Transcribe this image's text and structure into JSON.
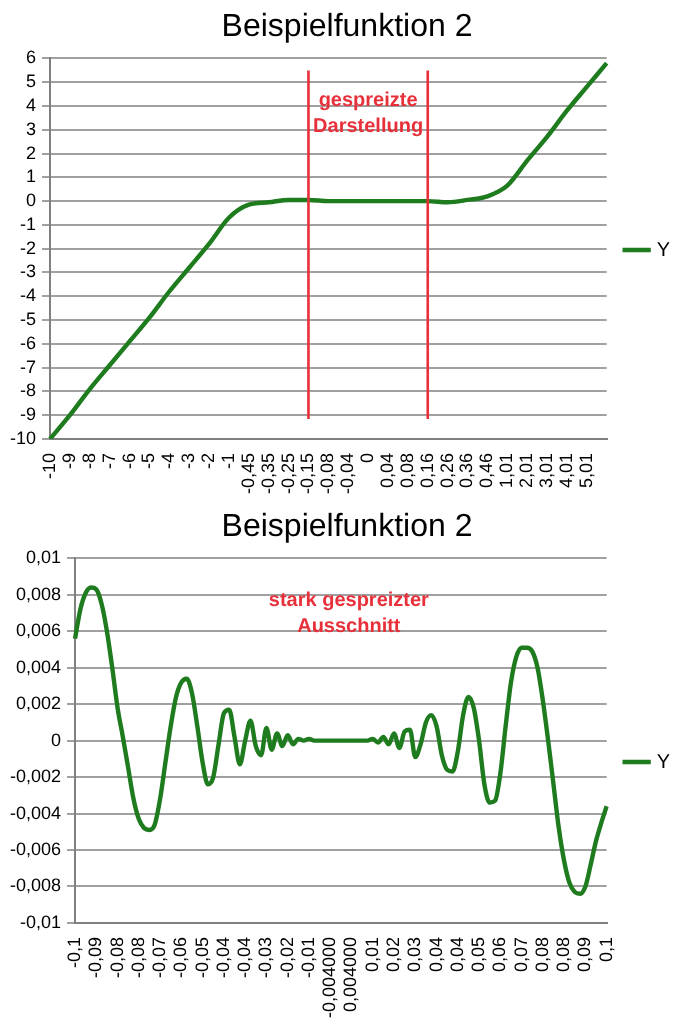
{
  "chart_data": [
    {
      "type": "line",
      "title": "Beispielfunktion 2",
      "categories": [
        "-10",
        "-9",
        "-8",
        "-7",
        "-6",
        "-5",
        "-4",
        "-3",
        "-2",
        "-1",
        "-0,45",
        "-0,35",
        "-0,25",
        "-0,15",
        "-0,08",
        "-0,04",
        "0",
        "0,04",
        "0,08",
        "0,16",
        "0,26",
        "0,36",
        "0,46",
        "1,01",
        "2,01",
        "3,01",
        "4,01",
        "5,01",
        null
      ],
      "series": [
        {
          "name": "Y",
          "color": "#1e7b1e",
          "values": [
            -10,
            -9,
            -7.9,
            -6.9,
            -5.9,
            -4.9,
            -3.8,
            -2.8,
            -1.8,
            -0.7,
            -0.15,
            -0.05,
            0.05,
            0.05,
            0,
            0,
            0,
            0,
            0,
            0,
            -0.05,
            0.05,
            0.2,
            0.65,
            1.7,
            2.7,
            3.8,
            4.8,
            5.8
          ]
        }
      ],
      "ylim": [
        -10,
        6
      ],
      "yticks": [
        -10,
        -9,
        -8,
        -7,
        -6,
        -5,
        -4,
        -3,
        -2,
        -1,
        0,
        1,
        2,
        3,
        4,
        5,
        6
      ],
      "grid": "y",
      "legend": "right",
      "marker": "none",
      "ref_lines": [
        {
          "axis": "x",
          "value": "-0,15",
          "color": "#e8303a"
        },
        {
          "axis": "x",
          "value": "0,16",
          "color": "#e8303a"
        }
      ],
      "annotations": [
        "gespreizte\nDarstellung"
      ]
    },
    {
      "type": "line",
      "title": "Beispielfunktion 2",
      "categories": [
        "-0,1",
        null,
        null,
        null,
        "-0,09",
        null,
        null,
        null,
        "-0,08",
        null,
        null,
        null,
        "-0,08",
        null,
        null,
        null,
        "-0,07",
        null,
        null,
        null,
        "-0,06",
        null,
        null,
        null,
        "-0,05",
        null,
        null,
        null,
        "-0,04",
        null,
        null,
        null,
        "-0,04",
        null,
        null,
        null,
        "-0,03",
        null,
        null,
        null,
        "-0,02",
        null,
        null,
        null,
        "-0,01",
        null,
        null,
        null,
        "-0,004000",
        null,
        null,
        null,
        "0,004000",
        null,
        null,
        null,
        "0,01",
        null,
        null,
        null,
        "0,02",
        null,
        null,
        null,
        "0,03",
        null,
        null,
        null,
        "0,04",
        null,
        null,
        null,
        "0,04",
        null,
        null,
        null,
        "0,05",
        null,
        null,
        null,
        "0,06",
        null,
        null,
        null,
        "0,07",
        null,
        null,
        null,
        "0,08",
        null,
        null,
        null,
        "0,08",
        null,
        null,
        null,
        "0,09",
        null,
        null,
        null,
        "0,1"
      ],
      "series": [
        {
          "name": "Y",
          "color": "#1e7b1e",
          "values": [
            0.0056,
            0.0072,
            0.0081,
            0.0084,
            0.0083,
            0.0075,
            0.006,
            0.004,
            0.0018,
            0.0002,
            -0.0015,
            -0.0032,
            -0.0043,
            -0.0048,
            -0.0049,
            -0.0046,
            -0.0032,
            -0.0012,
            0.0008,
            0.0024,
            0.0032,
            0.0034,
            0.0026,
            0.0008,
            -0.0012,
            -0.0024,
            -0.002,
            -0.0002,
            0.0015,
            0.0017,
            0.0002,
            -0.0013,
            0,
            0.0011,
            -0.0003,
            -0.0008,
            0.0007,
            -0.0005,
            0.0004,
            -0.0003,
            0.0003,
            -0.0002,
            0.0001,
            0,
            0.0001,
            0,
            0,
            0,
            0,
            0,
            0,
            0,
            0,
            0,
            0,
            0,
            0.0001,
            -0.0001,
            0.0002,
            -0.0002,
            0.0004,
            -0.0004,
            0.0005,
            0.0006,
            -0.0009,
            -0.0002,
            0.001,
            0.0014,
            0.0008,
            -0.0008,
            -0.0016,
            -0.0017,
            -0.0006,
            0.0014,
            0.0024,
            0.0018,
            0,
            -0.0024,
            -0.0034,
            -0.0033,
            -0.0018,
            0.0008,
            0.0032,
            0.0046,
            0.0051,
            0.0051,
            0.0049,
            0.004,
            0.0022,
            0,
            -0.0024,
            -0.0048,
            -0.0066,
            -0.0078,
            -0.0083,
            -0.0084,
            -0.008,
            -0.0068,
            -0.0055,
            -0.0045,
            -0.0036
          ]
        }
      ],
      "ylim": [
        -0.01,
        0.01
      ],
      "yticks": [
        {
          "value": -0.01,
          "label": "-0,01"
        },
        {
          "value": -0.008,
          "label": "-0,008"
        },
        {
          "value": -0.006,
          "label": "-0,006"
        },
        {
          "value": -0.004,
          "label": "-0,004"
        },
        {
          "value": -0.002,
          "label": "-0,002"
        },
        0,
        {
          "value": 0.002,
          "label": "0,002"
        },
        {
          "value": 0.004,
          "label": "0,004"
        },
        {
          "value": 0.006,
          "label": "0,006"
        },
        {
          "value": 0.008,
          "label": "0,008"
        },
        {
          "value": 0.01,
          "label": "0,01"
        }
      ],
      "grid": "y",
      "legend": "right",
      "marker": "none",
      "annotations": [
        "stark gespreizter\nAusschnitt"
      ]
    }
  ]
}
